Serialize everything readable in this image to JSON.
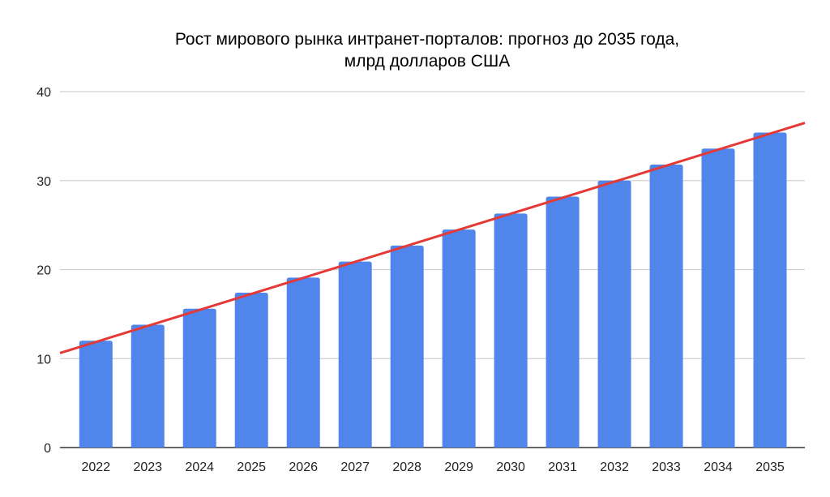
{
  "chart_data": {
    "type": "bar",
    "title": [
      "Рост мирового рынка интранет-порталов: прогноз до 2035 года,",
      "млрд долларов США"
    ],
    "xlabel": "",
    "ylabel": "",
    "categories": [
      "2022",
      "2023",
      "2024",
      "2025",
      "2026",
      "2027",
      "2028",
      "2029",
      "2030",
      "2031",
      "2032",
      "2033",
      "2034",
      "2035"
    ],
    "series": [
      {
        "values": [
          12.0,
          13.8,
          15.6,
          17.4,
          19.1,
          20.9,
          22.7,
          24.5,
          26.3,
          28.2,
          30.0,
          31.8,
          33.6,
          35.4
        ]
      }
    ],
    "trendline": {
      "type": "linear",
      "color": "#e53935"
    },
    "ylim": [
      0,
      40
    ],
    "yticks": [
      "0",
      "10",
      "20",
      "30",
      "40"
    ],
    "grid": true,
    "legend": "none",
    "colors": {
      "bar": "#5085ec",
      "grid": "#d0d0d0",
      "axis": "#333333"
    }
  }
}
